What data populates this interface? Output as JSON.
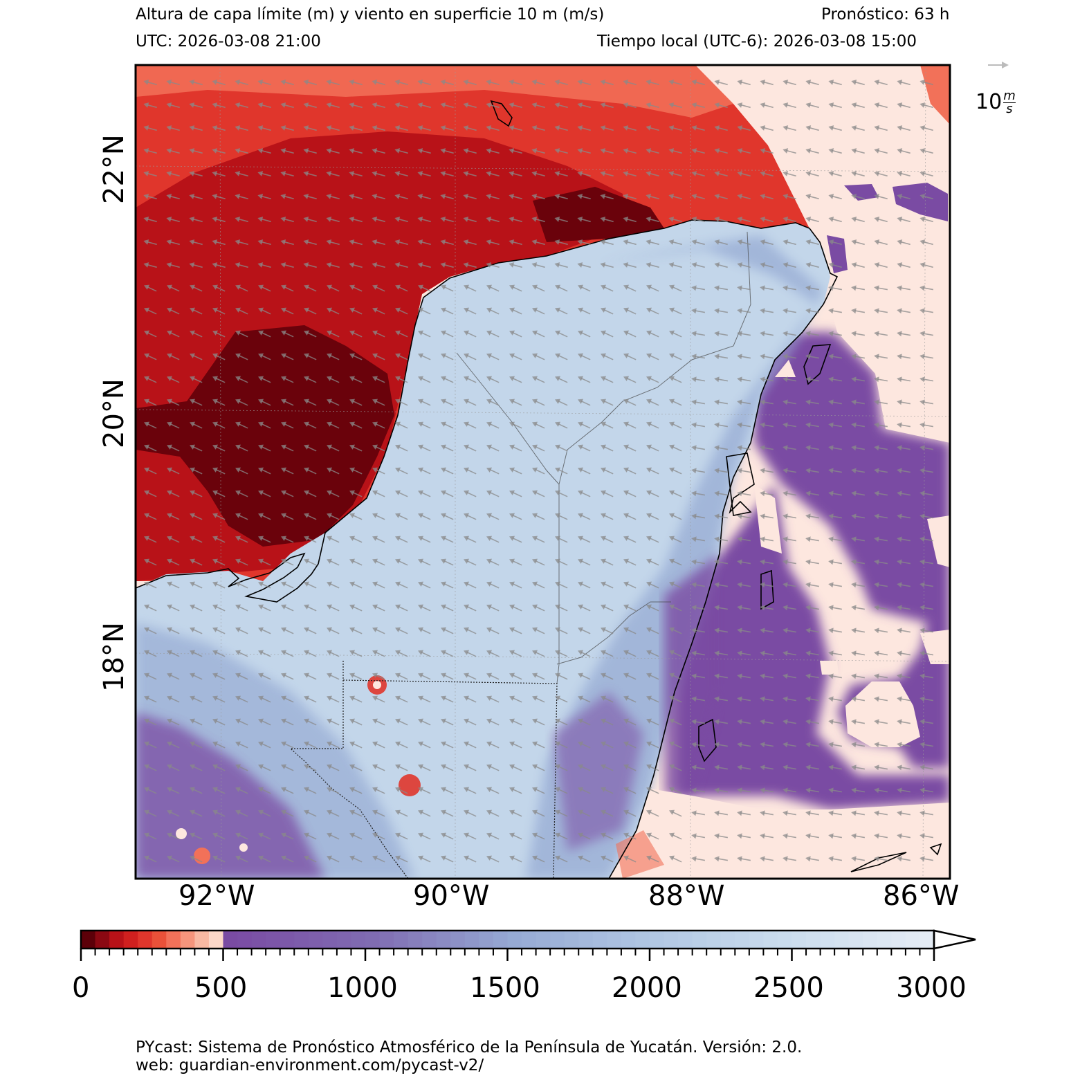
{
  "header": {
    "title": "Altura de capa límite (m) y viento en superficie 10 m (m/s)",
    "forecast": "Pronóstico: 63 h",
    "utc": "UTC:  2026-03-08 21:00",
    "local": "Tiempo local (UTC-6): 2026-03-08 15:00"
  },
  "map": {
    "lat_ticks": [
      "22°N",
      "20°N",
      "18°N"
    ],
    "lon_ticks": [
      "92°W",
      "90°W",
      "88°W",
      "86°W"
    ],
    "wind_key_base": "10",
    "wind_key_unit_num": "m",
    "wind_key_unit_den": "s",
    "colors": {
      "land_light": "#c3d6ea",
      "land_mid": "#9fb3d8",
      "purple": "#7a4ba3",
      "red_dark": "#b81218",
      "red": "#e0362c",
      "maroon": "#6a020b",
      "salmon": "#f27159",
      "pale": "#fde7df",
      "arrow": "#8a8a8a"
    }
  },
  "colorbar": {
    "tick_labels": [
      "0",
      "500",
      "1000",
      "1500",
      "2000",
      "2500",
      "3000"
    ],
    "min": 0,
    "max": 3000
  },
  "footer": {
    "line1": "PYcast: Sistema de Pronóstico Atmosférico de la Península de Yucatán. Versión: 2.0.",
    "line2": "web: guardian-environment.com/pycast-v2/"
  }
}
